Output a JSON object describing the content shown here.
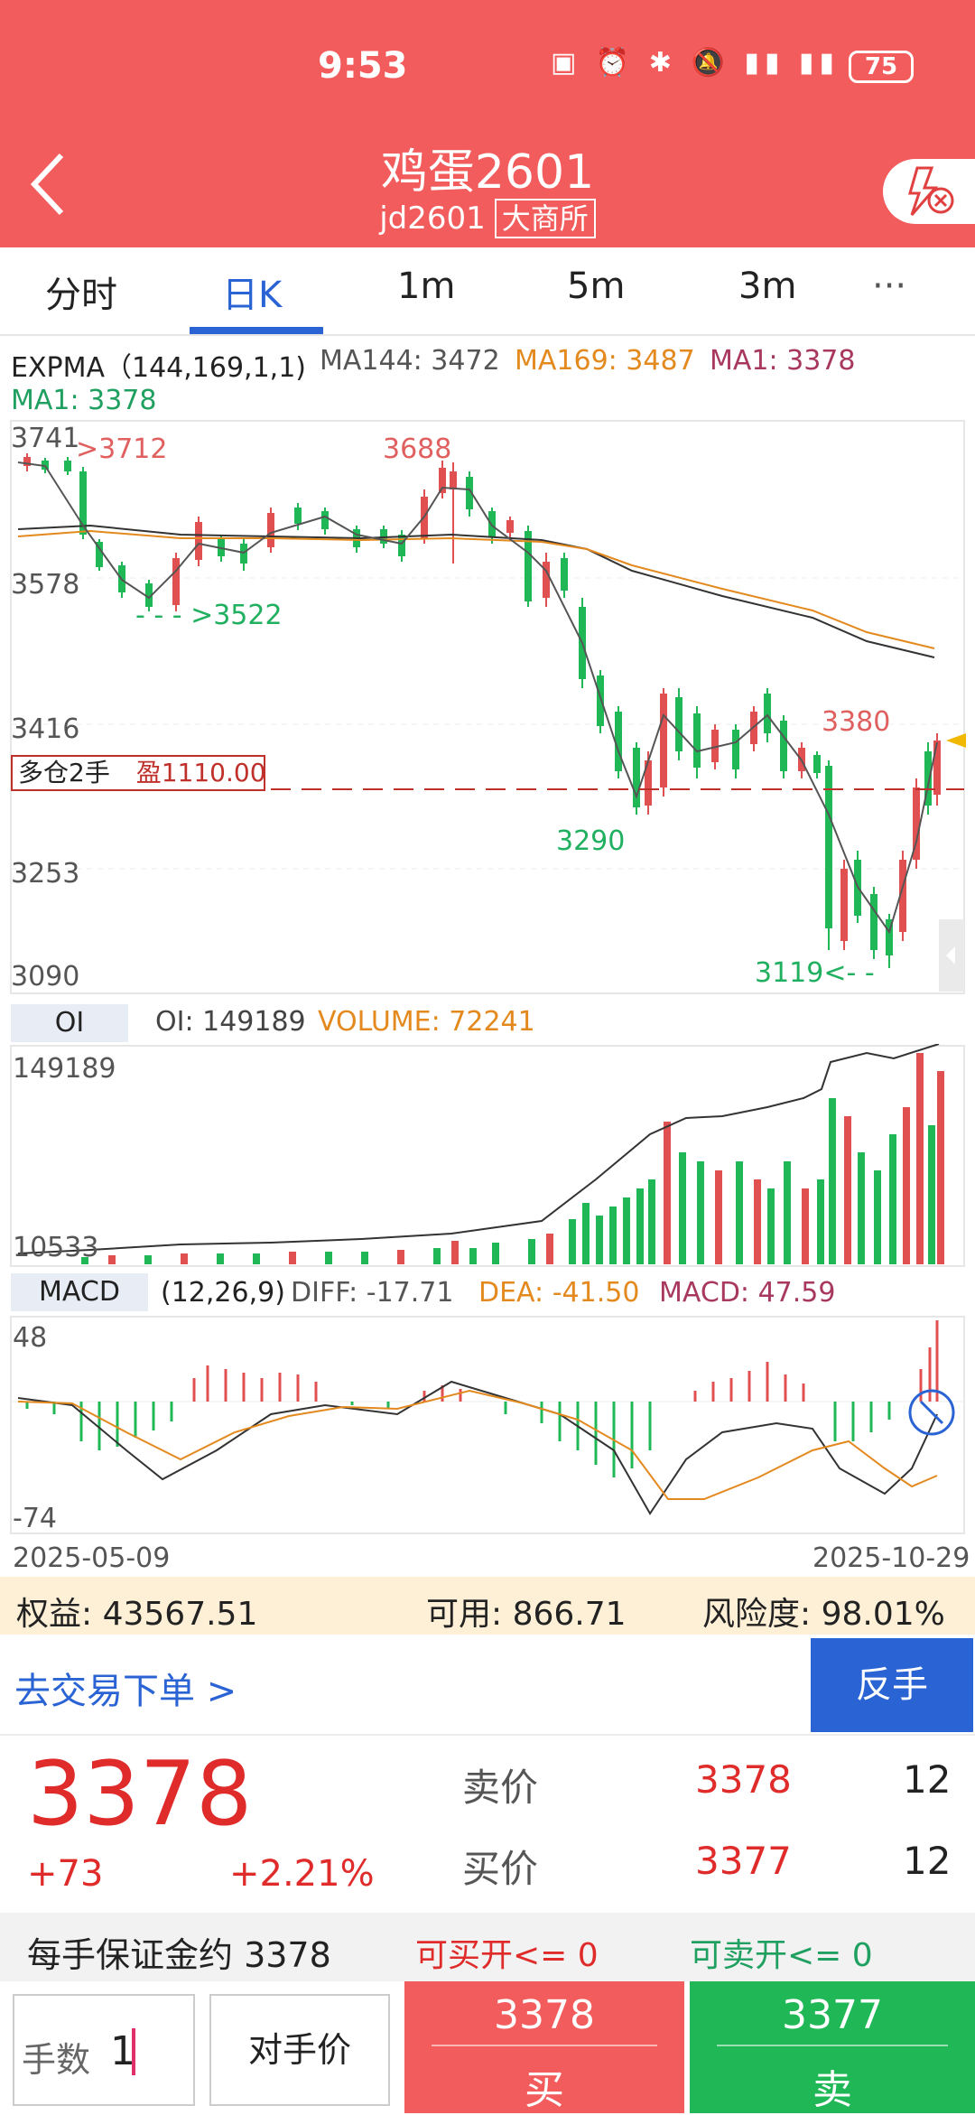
{
  "status": {
    "time": "9:53",
    "battery": "75"
  },
  "header": {
    "title": "鸡蛋2601",
    "code": "jd2601",
    "exchange": "大商所"
  },
  "tabs": [
    "分时",
    "日K",
    "1m",
    "5m",
    "3m",
    "···"
  ],
  "indicator": {
    "expma_label": "EXPMA（144,169,1,1)",
    "ma144": "MA144: 3472",
    "ma169": "MA169: 3487",
    "ma1": "MA1: 3378",
    "ma1_line2": "MA1: 3378"
  },
  "price_axis": [
    "3741",
    "3578",
    "3416",
    "3253",
    "3090"
  ],
  "annotations": {
    "high_left": ">3712",
    "high_mid": "3688",
    "low_left": "- - - >3522",
    "low_mid": "3290",
    "right_high": "3380",
    "right_low": "3119<- -",
    "position": "多仓2手",
    "profit": "盈1110.00"
  },
  "oi_panel": {
    "label": "OI",
    "oi": "OI: 149189",
    "volume": "VOLUME: 72241",
    "axis_top": "149189",
    "axis_bottom": "10533"
  },
  "macd_panel": {
    "label": "MACD",
    "params": "(12,26,9)",
    "diff": "DIFF: -17.71",
    "dea": "DEA: -41.50",
    "macd": "MACD: 47.59",
    "axis_top": "48",
    "axis_bottom": "-74"
  },
  "dates": {
    "start": "2025-05-09",
    "end": "2025-10-29"
  },
  "account": {
    "equity": "权益:  43567.51",
    "available": "可用:  866.71",
    "risk": "风险度: 98.01%"
  },
  "order": {
    "link": "去交易下单 >",
    "reverse": "反手"
  },
  "quote": {
    "last": "3378",
    "change": "+73",
    "change_pct": "+2.21%",
    "ask_label": "卖价",
    "ask_price": "3378",
    "ask_vol": "12",
    "bid_label": "买价",
    "bid_price": "3377",
    "bid_vol": "12"
  },
  "margin": {
    "text": "每手保证金约 3378",
    "can_buy": "可买开<= 0",
    "can_sell": "可卖开<= 0"
  },
  "bottom": {
    "qty_label": "手数",
    "qty_value": "1",
    "counter_price": "对手价",
    "buy_price": "3378",
    "buy": "买",
    "sell_price": "3377",
    "sell": "卖"
  },
  "colors": {
    "red": "#f25c5c",
    "green": "#20b857",
    "blue": "#2a63d4"
  }
}
